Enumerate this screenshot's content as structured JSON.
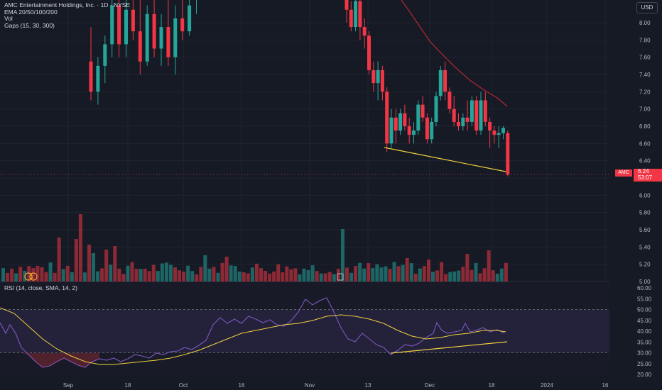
{
  "header": {
    "title": "AMC Entertainment Holdings, Inc. · 1D · NYSE",
    "indicators": [
      "EMA 20/50/100/200",
      "Vol",
      "Gaps (15, 30, 300)"
    ],
    "currency_button": "USD"
  },
  "price_tag": {
    "symbol": "AMC",
    "price": "6.24",
    "countdown": "53:07"
  },
  "rsi_legend": "RSI (14, close, SMA, 14, 2)",
  "volume_marker": "S",
  "colors": {
    "up": "#26a69a",
    "down": "#f23645",
    "ema": "#b22833",
    "trendline": "#f0d040",
    "rsi": "#7e57c2",
    "rsi_ma": "#f0d040",
    "background": "#161a25"
  },
  "chart_data": {
    "type": "candlestick",
    "price_axis": {
      "ticks": [
        "8.00",
        "7.80",
        "7.60",
        "7.40",
        "7.20",
        "7.00",
        "6.80",
        "6.60",
        "6.40",
        "6.20",
        "6.00",
        "5.80",
        "5.60",
        "5.40",
        "5.20",
        "5.00"
      ],
      "ylim": [
        5.0,
        8.25
      ]
    },
    "rsi_axis": {
      "ticks": [
        "60.00",
        "55.00",
        "50.00",
        "45.00",
        "40.00",
        "35.00",
        "30.00",
        "25.00",
        "20.00"
      ],
      "ylim": [
        20,
        60
      ],
      "bands": [
        30,
        50
      ]
    },
    "time_axis": {
      "labels": [
        "Sep",
        "18",
        "Oct",
        "16",
        "Nov",
        "13",
        "Dec",
        "18",
        "2024",
        "16"
      ]
    },
    "candles": [
      {
        "o": 7.55,
        "h": 7.95,
        "l": 7.1,
        "c": 7.2
      },
      {
        "o": 7.2,
        "h": 7.6,
        "l": 7.05,
        "c": 7.5
      },
      {
        "o": 7.5,
        "h": 7.85,
        "l": 7.3,
        "c": 7.75
      },
      {
        "o": 7.75,
        "h": 8.3,
        "l": 7.6,
        "c": 8.2
      },
      {
        "o": 8.2,
        "h": 8.3,
        "l": 7.6,
        "c": 7.75
      },
      {
        "o": 7.75,
        "h": 8.3,
        "l": 7.6,
        "c": 8.15
      },
      {
        "o": 8.15,
        "h": 8.3,
        "l": 7.8,
        "c": 7.9
      },
      {
        "o": 7.9,
        "h": 8.3,
        "l": 7.4,
        "c": 7.55
      },
      {
        "o": 7.55,
        "h": 8.2,
        "l": 7.5,
        "c": 8.1
      },
      {
        "o": 8.1,
        "h": 8.3,
        "l": 7.6,
        "c": 7.7
      },
      {
        "o": 7.7,
        "h": 8.1,
        "l": 7.5,
        "c": 7.95
      },
      {
        "o": 7.95,
        "h": 8.3,
        "l": 7.5,
        "c": 7.6
      },
      {
        "o": 7.6,
        "h": 8.2,
        "l": 7.4,
        "c": 8.05
      },
      {
        "o": 8.05,
        "h": 8.3,
        "l": 7.8,
        "c": 7.9
      },
      {
        "o": 7.9,
        "h": 8.3,
        "l": 7.85,
        "c": 8.2
      },
      {
        "o": 8.3,
        "h": 8.34,
        "l": 8.1,
        "c": 8.3
      },
      {
        "o": 8.3,
        "h": 8.34,
        "l": 8.0,
        "c": 8.15
      },
      {
        "o": 8.15,
        "h": 8.25,
        "l": 7.9,
        "c": 7.95
      },
      {
        "o": 7.95,
        "h": 8.3,
        "l": 7.9,
        "c": 8.25
      },
      {
        "o": 8.25,
        "h": 8.34,
        "l": 7.8,
        "c": 7.95
      },
      {
        "o": 7.95,
        "h": 8.05,
        "l": 7.7,
        "c": 7.85
      },
      {
        "o": 7.85,
        "h": 7.9,
        "l": 7.4,
        "c": 7.45
      },
      {
        "o": 7.45,
        "h": 7.55,
        "l": 7.2,
        "c": 7.3
      },
      {
        "o": 7.3,
        "h": 7.55,
        "l": 7.1,
        "c": 7.45
      },
      {
        "o": 7.45,
        "h": 7.5,
        "l": 7.1,
        "c": 7.2
      },
      {
        "o": 7.2,
        "h": 7.25,
        "l": 6.5,
        "c": 6.6
      },
      {
        "o": 6.6,
        "h": 7.0,
        "l": 6.55,
        "c": 6.9
      },
      {
        "o": 6.9,
        "h": 7.0,
        "l": 6.6,
        "c": 6.75
      },
      {
        "o": 6.75,
        "h": 7.0,
        "l": 6.7,
        "c": 6.95
      },
      {
        "o": 6.95,
        "h": 7.05,
        "l": 6.75,
        "c": 6.8
      },
      {
        "o": 6.8,
        "h": 6.9,
        "l": 6.6,
        "c": 6.7
      },
      {
        "o": 6.7,
        "h": 6.85,
        "l": 6.6,
        "c": 6.75
      },
      {
        "o": 6.75,
        "h": 7.1,
        "l": 6.7,
        "c": 7.05
      },
      {
        "o": 7.05,
        "h": 7.15,
        "l": 6.85,
        "c": 6.9
      },
      {
        "o": 6.9,
        "h": 6.95,
        "l": 6.6,
        "c": 6.65
      },
      {
        "o": 6.65,
        "h": 6.9,
        "l": 6.6,
        "c": 6.85
      },
      {
        "o": 6.85,
        "h": 7.2,
        "l": 6.8,
        "c": 7.15
      },
      {
        "o": 7.15,
        "h": 7.5,
        "l": 7.1,
        "c": 7.45
      },
      {
        "o": 7.45,
        "h": 7.55,
        "l": 7.1,
        "c": 7.2
      },
      {
        "o": 7.2,
        "h": 7.25,
        "l": 6.95,
        "c": 7.0
      },
      {
        "o": 7.0,
        "h": 7.15,
        "l": 6.8,
        "c": 6.85
      },
      {
        "o": 6.85,
        "h": 6.95,
        "l": 6.75,
        "c": 6.8
      },
      {
        "o": 6.8,
        "h": 6.95,
        "l": 6.75,
        "c": 6.9
      },
      {
        "o": 6.9,
        "h": 7.1,
        "l": 6.75,
        "c": 6.85
      },
      {
        "o": 6.85,
        "h": 7.15,
        "l": 6.8,
        "c": 7.1
      },
      {
        "o": 7.1,
        "h": 7.15,
        "l": 6.7,
        "c": 6.75
      },
      {
        "o": 6.75,
        "h": 7.2,
        "l": 6.7,
        "c": 7.1
      },
      {
        "o": 7.1,
        "h": 7.2,
        "l": 6.8,
        "c": 6.85
      },
      {
        "o": 6.85,
        "h": 6.9,
        "l": 6.55,
        "c": 6.75
      },
      {
        "o": 6.75,
        "h": 6.8,
        "l": 6.6,
        "c": 6.7
      },
      {
        "o": 6.7,
        "h": 6.8,
        "l": 6.55,
        "c": 6.72
      },
      {
        "o": 6.72,
        "h": 6.8,
        "l": 6.65,
        "c": 6.78
      },
      {
        "o": 6.72,
        "h": 6.75,
        "l": 6.22,
        "c": 6.24
      }
    ]
  }
}
